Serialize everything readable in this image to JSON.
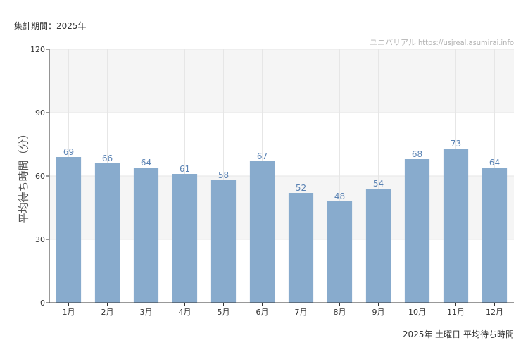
{
  "header": {
    "period": "集計期間：2025年",
    "credit": "ユニバリアル  https://usjreal.asumirai.info"
  },
  "footer": {
    "title": "2025年 土曜日 平均待ち時間"
  },
  "colors": {
    "bar": "#88abcd",
    "bar_label": "#5b83b4",
    "band": "#f5f5f5",
    "grid": "#e6e6e6",
    "axis": "#333333"
  },
  "chart_data": {
    "type": "bar",
    "ylabel": "平均待ち時間（分）",
    "xlabel": "",
    "categories": [
      "1月",
      "2月",
      "3月",
      "4月",
      "5月",
      "6月",
      "7月",
      "8月",
      "9月",
      "10月",
      "11月",
      "12月"
    ],
    "values": [
      69,
      66,
      64,
      61,
      58,
      67,
      52,
      48,
      54,
      68,
      73,
      64
    ],
    "ylim": [
      0,
      120
    ],
    "yticks": [
      0,
      30,
      60,
      90,
      120
    ],
    "grid": true,
    "data_labels": true
  }
}
